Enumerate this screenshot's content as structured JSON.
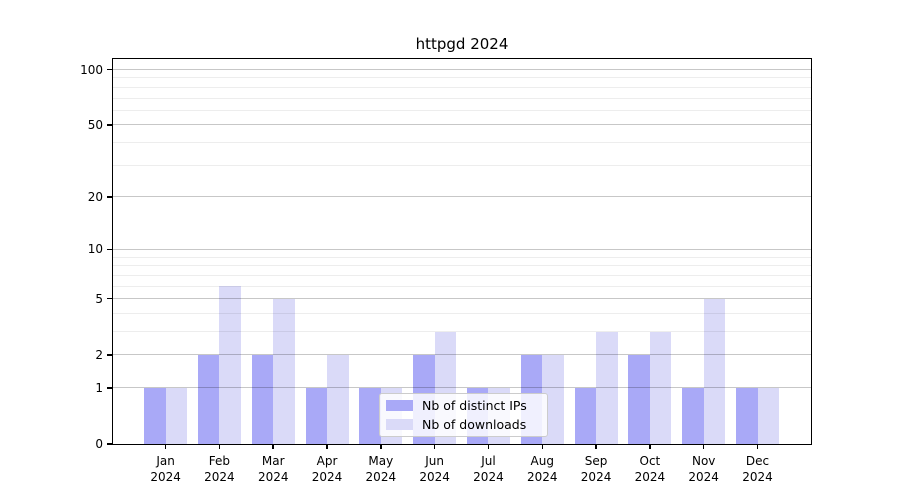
{
  "chart_data": {
    "type": "bar",
    "title": "httpgd 2024",
    "categories": [
      "Jan",
      "Feb",
      "Mar",
      "Apr",
      "May",
      "Jun",
      "Jul",
      "Aug",
      "Sep",
      "Oct",
      "Nov",
      "Dec"
    ],
    "category_year": "2024",
    "series": [
      {
        "name": "Nb of distinct IPs",
        "color": "#a9a9f7",
        "values": [
          1,
          2,
          2,
          1,
          1,
          2,
          1,
          2,
          1,
          2,
          1,
          1
        ]
      },
      {
        "name": "Nb of downloads",
        "color": "#dadaf8",
        "values": [
          1,
          6,
          5,
          2,
          1,
          3,
          1,
          2,
          3,
          3,
          5,
          1
        ]
      }
    ],
    "xlabel": "",
    "ylabel": "",
    "y_scale": "log1p",
    "ylim": [
      0,
      114
    ],
    "y_ticks_major": [
      0,
      1,
      2,
      5,
      10,
      20,
      50,
      100
    ],
    "y_ticks_minor": [
      3,
      4,
      6,
      7,
      8,
      9,
      30,
      40,
      60,
      70,
      80,
      90
    ],
    "grid": true,
    "grid_major_color": "rgba(0,0,0,0.22)",
    "grid_minor_color": "rgba(0,0,0,0.07)",
    "axis_color": "#000000",
    "background_color": "#ffffff",
    "legend_position": "inside-bottom-center"
  }
}
